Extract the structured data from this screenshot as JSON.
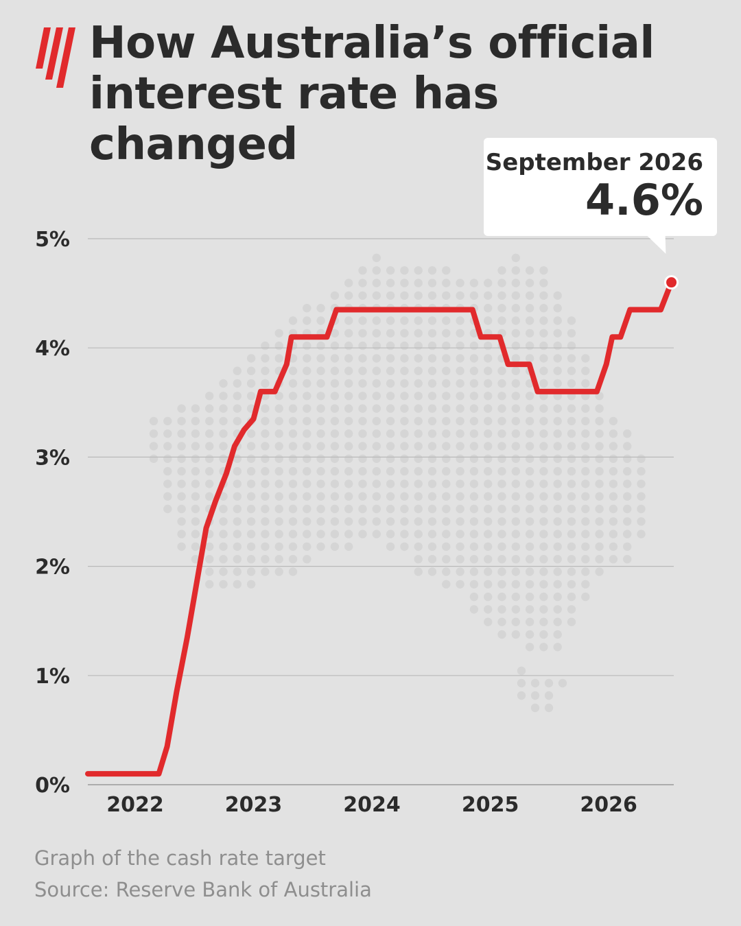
{
  "brand": {
    "logo_icon": "sbs-wave-logo-icon",
    "accent": "#e12a2c"
  },
  "title": {
    "line1": "How Australia’s official",
    "line2": "interest rate has changed"
  },
  "callout": {
    "label": "September 2026",
    "value": "4.6%"
  },
  "footer": {
    "caption": "Graph of the cash rate target",
    "source": "Source: Reserve Bank of Australia"
  },
  "chart_data": {
    "type": "line",
    "title": "How Australia’s official interest rate has changed",
    "xlabel": "",
    "ylabel": "",
    "xlim": [
      2021.6,
      2026.55
    ],
    "ylim": [
      0,
      5
    ],
    "x_ticks": [
      2022,
      2023,
      2024,
      2025,
      2026
    ],
    "x_tick_labels": [
      "2022",
      "2023",
      "2024",
      "2025",
      "2026"
    ],
    "y_ticks": [
      0,
      1,
      2,
      3,
      4,
      5
    ],
    "y_tick_labels": [
      "0%",
      "1%",
      "2%",
      "3%",
      "4%",
      "5%"
    ],
    "grid": true,
    "background_decoration": "dotted-map-of-australia",
    "series": [
      {
        "color": "#e12a2c",
        "points": [
          [
            2021.6,
            0.1
          ],
          [
            2022.2,
            0.1
          ],
          [
            2022.27,
            0.35
          ],
          [
            2022.35,
            0.85
          ],
          [
            2022.44,
            1.35
          ],
          [
            2022.52,
            1.85
          ],
          [
            2022.6,
            2.35
          ],
          [
            2022.68,
            2.6
          ],
          [
            2022.77,
            2.85
          ],
          [
            2022.84,
            3.1
          ],
          [
            2022.92,
            3.25
          ],
          [
            2023.0,
            3.35
          ],
          [
            2023.06,
            3.6
          ],
          [
            2023.18,
            3.6
          ],
          [
            2023.28,
            3.85
          ],
          [
            2023.32,
            4.1
          ],
          [
            2023.62,
            4.1
          ],
          [
            2023.7,
            4.35
          ],
          [
            2024.85,
            4.35
          ],
          [
            2024.92,
            4.1
          ],
          [
            2025.08,
            4.1
          ],
          [
            2025.15,
            3.85
          ],
          [
            2025.33,
            3.85
          ],
          [
            2025.4,
            3.6
          ],
          [
            2025.9,
            3.6
          ],
          [
            2025.98,
            3.85
          ],
          [
            2026.03,
            4.1
          ],
          [
            2026.1,
            4.1
          ],
          [
            2026.18,
            4.35
          ],
          [
            2026.44,
            4.35
          ],
          [
            2026.53,
            4.6
          ]
        ]
      }
    ],
    "highlight_point": {
      "x": 2026.53,
      "y": 4.6,
      "label": "September 2026",
      "value": "4.6%"
    }
  }
}
